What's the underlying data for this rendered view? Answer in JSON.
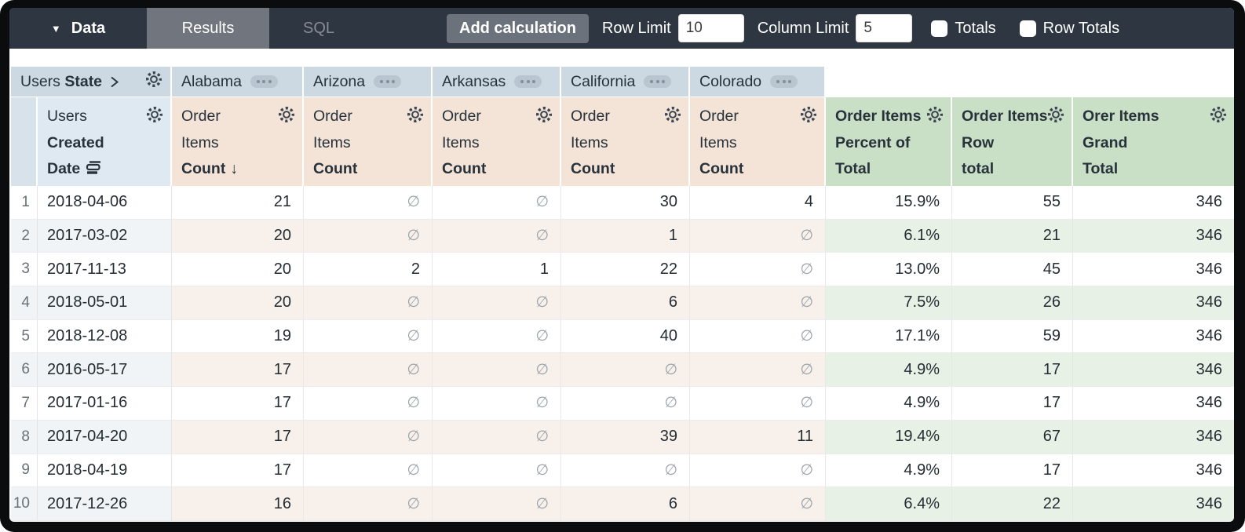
{
  "toolbar": {
    "data_tab": "Data",
    "results_tab": "Results",
    "sql_tab": "SQL",
    "add_calculation": "Add calculation",
    "row_limit_label": "Row Limit",
    "row_limit_value": "10",
    "column_limit_label": "Column Limit",
    "column_limit_value": "5",
    "totals_label": "Totals",
    "row_totals_label": "Row Totals",
    "totals_checked": false,
    "row_totals_checked": false
  },
  "colors": {
    "topbar": "#2e3641",
    "pivot_header_blue": "#ccd8e2",
    "dimension_header_blue": "#dfe9f2",
    "measure_header_tan": "#f4e3d7",
    "calc_header_green": "#c9dfc6"
  },
  "table": {
    "pivot_header": {
      "dimension_label": "Users",
      "dimension_field": "State",
      "states": [
        "Alabama",
        "Arizona",
        "Arkansas",
        "California",
        "Colorado"
      ]
    },
    "dimension_column": {
      "lines": [
        "Users",
        "Created",
        "Date"
      ]
    },
    "measure_column": {
      "lines": [
        "Order",
        "Items",
        "Count"
      ],
      "sort_arrow": "↓"
    },
    "calc_columns": [
      {
        "lines": [
          "Order Items",
          "Percent of",
          "Total"
        ]
      },
      {
        "lines": [
          "Order Items",
          "Row",
          "total"
        ]
      },
      {
        "lines": [
          "Orer Items",
          "Grand",
          "Total"
        ]
      }
    ],
    "null_symbol": "∅",
    "rows": [
      {
        "num": "1",
        "date": "2018-04-06",
        "measures": [
          "21",
          "∅",
          "∅",
          "30",
          "4"
        ],
        "calcs": [
          "15.9%",
          "55",
          "346"
        ]
      },
      {
        "num": "2",
        "date": "2017-03-02",
        "measures": [
          "20",
          "∅",
          "∅",
          "1",
          "∅"
        ],
        "calcs": [
          "6.1%",
          "21",
          "346"
        ]
      },
      {
        "num": "3",
        "date": "2017-11-13",
        "measures": [
          "20",
          "2",
          "1",
          "22",
          "∅"
        ],
        "calcs": [
          "13.0%",
          "45",
          "346"
        ]
      },
      {
        "num": "4",
        "date": "2018-05-01",
        "measures": [
          "20",
          "∅",
          "∅",
          "6",
          "∅"
        ],
        "calcs": [
          "7.5%",
          "26",
          "346"
        ]
      },
      {
        "num": "5",
        "date": "2018-12-08",
        "measures": [
          "19",
          "∅",
          "∅",
          "40",
          "∅"
        ],
        "calcs": [
          "17.1%",
          "59",
          "346"
        ]
      },
      {
        "num": "6",
        "date": "2016-05-17",
        "measures": [
          "17",
          "∅",
          "∅",
          "∅",
          "∅"
        ],
        "calcs": [
          "4.9%",
          "17",
          "346"
        ]
      },
      {
        "num": "7",
        "date": "2017-01-16",
        "measures": [
          "17",
          "∅",
          "∅",
          "∅",
          "∅"
        ],
        "calcs": [
          "4.9%",
          "17",
          "346"
        ]
      },
      {
        "num": "8",
        "date": "2017-04-20",
        "measures": [
          "17",
          "∅",
          "∅",
          "39",
          "11"
        ],
        "calcs": [
          "19.4%",
          "67",
          "346"
        ]
      },
      {
        "num": "9",
        "date": "2018-04-19",
        "measures": [
          "17",
          "∅",
          "∅",
          "∅",
          "∅"
        ],
        "calcs": [
          "4.9%",
          "17",
          "346"
        ]
      },
      {
        "num": "10",
        "date": "2017-12-26",
        "measures": [
          "16",
          "∅",
          "∅",
          "6",
          "∅"
        ],
        "calcs": [
          "6.4%",
          "22",
          "346"
        ]
      }
    ]
  }
}
